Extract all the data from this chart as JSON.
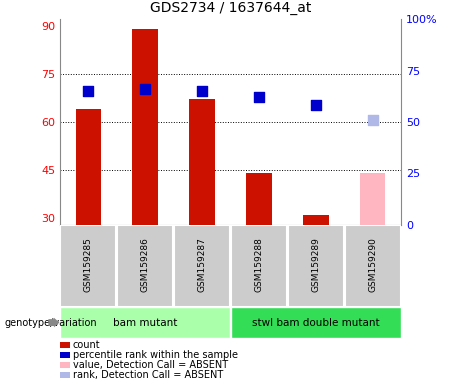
{
  "title": "GDS2734 / 1637644_at",
  "samples": [
    "GSM159285",
    "GSM159286",
    "GSM159287",
    "GSM159288",
    "GSM159289",
    "GSM159290"
  ],
  "group1_label": "bam mutant",
  "group1_indices": [
    0,
    1,
    2
  ],
  "group2_label": "stwl bam double mutant",
  "group2_indices": [
    3,
    4,
    5
  ],
  "group1_color": "#aaffaa",
  "group2_color": "#33dd55",
  "bar_heights": [
    64.0,
    89.0,
    67.0,
    44.0,
    31.0,
    44.0
  ],
  "bar_colors": [
    "#cc1100",
    "#cc1100",
    "#cc1100",
    "#cc1100",
    "#cc1100",
    "#ffb6c1"
  ],
  "rank_values": [
    65.0,
    66.0,
    65.0,
    62.0,
    58.0,
    51.0
  ],
  "rank_colors": [
    "#0000cc",
    "#0000cc",
    "#0000cc",
    "#0000cc",
    "#0000cc",
    "#b0b8e8"
  ],
  "ylim_left": [
    28,
    92
  ],
  "ylim_right": [
    0,
    100
  ],
  "yticks_left": [
    30,
    45,
    60,
    75,
    90
  ],
  "yticks_right": [
    0,
    25,
    50,
    75,
    100
  ],
  "ytick_labels_right": [
    "0",
    "25",
    "50",
    "75",
    "100%"
  ],
  "hlines": [
    45,
    60,
    75
  ],
  "bar_width": 0.45,
  "rank_marker_size": 55,
  "genotype_label": "genotype/variation",
  "legend_items": [
    {
      "label": "count",
      "color": "#cc1100"
    },
    {
      "label": "percentile rank within the sample",
      "color": "#0000cc"
    },
    {
      "label": "value, Detection Call = ABSENT",
      "color": "#ffb6c1"
    },
    {
      "label": "rank, Detection Call = ABSENT",
      "color": "#b0b8e8"
    }
  ],
  "sample_box_color": "#cccccc",
  "sample_box_edge": "#ffffff"
}
